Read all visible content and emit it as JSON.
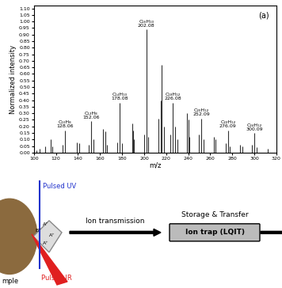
{
  "chart_data": {
    "type": "stem",
    "xlabel": "m/z",
    "ylabel": "Normalized intensity",
    "panel_label": "(a)",
    "x": [
      102,
      105,
      110,
      115,
      117,
      126,
      128.06,
      139,
      141,
      150,
      152.06,
      154,
      163,
      165,
      166,
      176,
      178.08,
      180,
      189,
      190,
      191,
      200,
      202.08,
      204,
      213,
      215,
      216,
      218,
      224,
      226.08,
      228,
      230,
      239,
      240,
      241,
      250,
      252.09,
      254,
      263,
      265,
      274,
      276.09,
      278,
      287,
      289,
      298,
      300.09,
      302,
      312
    ],
    "values": [
      0.02,
      0.03,
      0.05,
      0.1,
      0.05,
      0.06,
      0.17,
      0.08,
      0.07,
      0.06,
      0.24,
      0.1,
      0.18,
      0.16,
      0.06,
      0.08,
      0.38,
      0.07,
      0.22,
      0.17,
      0.1,
      0.14,
      0.94,
      0.12,
      0.26,
      0.4,
      0.67,
      0.2,
      0.14,
      0.38,
      0.2,
      0.1,
      0.3,
      0.25,
      0.12,
      0.14,
      0.26,
      0.1,
      0.12,
      0.1,
      0.07,
      0.17,
      0.05,
      0.06,
      0.05,
      0.06,
      0.15,
      0.04,
      0.03
    ],
    "color": "#333333",
    "xlim": [
      100,
      320
    ],
    "xticks": [
      100,
      120,
      140,
      160,
      180,
      200,
      220,
      240,
      260,
      280,
      300,
      320
    ],
    "ylim": [
      0,
      1.12
    ],
    "yticks": [
      {
        "value": 0,
        "label": "0.00"
      },
      {
        "value": 0.05,
        "label": "0.05"
      },
      {
        "value": 0.1,
        "label": "0.10"
      },
      {
        "value": 0.15,
        "label": "0.15"
      },
      {
        "value": 0.2,
        "label": "0.20"
      },
      {
        "value": 0.25,
        "label": "0.25"
      },
      {
        "value": 0.3,
        "label": "0.30"
      },
      {
        "value": 0.35,
        "label": "0.35"
      },
      {
        "value": 0.4,
        "label": "0.40"
      },
      {
        "value": 0.45,
        "label": "0.45"
      },
      {
        "value": 0.5,
        "label": "0.50"
      },
      {
        "value": 0.55,
        "label": "0.55"
      },
      {
        "value": 0.6,
        "label": "0.60"
      },
      {
        "value": 0.65,
        "label": "0.65"
      },
      {
        "value": 0.7,
        "label": "0.70"
      },
      {
        "value": 0.75,
        "label": "0.75"
      },
      {
        "value": 0.8,
        "label": "0.80"
      },
      {
        "value": 0.85,
        "label": "0.85"
      },
      {
        "value": 0.9,
        "label": "0.90"
      },
      {
        "value": 0.95,
        "label": "0.95"
      },
      {
        "value": 1.0,
        "label": "1.00"
      },
      {
        "value": 1.05,
        "label": "1.05"
      },
      {
        "value": 1.1,
        "label": "1.10"
      }
    ],
    "annotations": [
      {
        "x": 128.06,
        "formula": "C₁₀H₈",
        "label": "128.06"
      },
      {
        "x": 152.06,
        "formula": "C₁₂H₈",
        "label": "152.06"
      },
      {
        "x": 178.08,
        "formula": "C₁₄H₁₀",
        "label": "178.08"
      },
      {
        "x": 202.08,
        "formula": "C₁₆H₁₀",
        "label": "202.08"
      },
      {
        "x": 226.08,
        "formula": "C₁₈H₁₂",
        "label": "226.08"
      },
      {
        "x": 252.09,
        "formula": "C₂₀H₁₂",
        "label": "252.09"
      },
      {
        "x": 276.09,
        "formula": "C₂₂H₁₂",
        "label": "276.09"
      },
      {
        "x": 300.09,
        "formula": "C₂₄H₁₂",
        "label": "300.09"
      }
    ]
  },
  "diagram": {
    "sample": "mple",
    "uv": "Pulsed UV",
    "ir": "Pulsed IR",
    "ions": [
      "B⁺",
      "A⁺",
      "A⁺",
      "A⁺"
    ],
    "arrow_label": "Ion transmission",
    "box_title": "Storage & Transfer",
    "box_label": "Ion trap (LQIT)"
  }
}
